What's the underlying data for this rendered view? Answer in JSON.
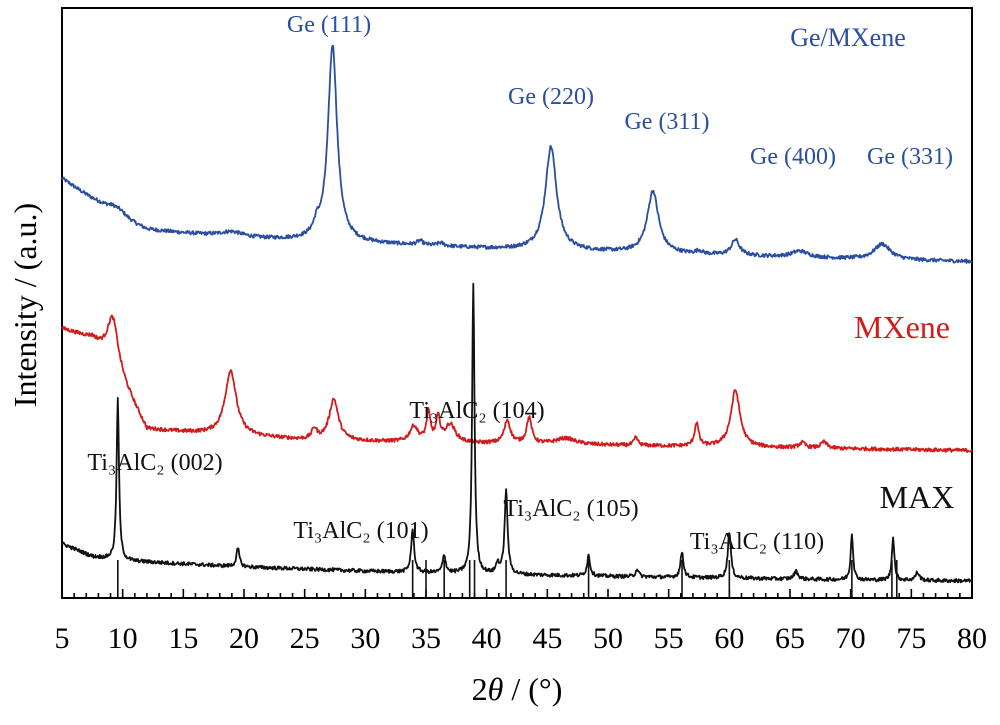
{
  "chart_data": {
    "type": "line",
    "title": "",
    "xlabel": "2θ / (°)",
    "xlabel_symbol": "θ",
    "xlabel_prefix": "2",
    "xlabel_suffix": " / (°)",
    "ylabel": "Intensity / (a.u.)",
    "xlim": [
      5,
      80
    ],
    "x_ticks": [
      5,
      10,
      15,
      20,
      25,
      30,
      35,
      40,
      45,
      50,
      55,
      60,
      65,
      70,
      75,
      80
    ],
    "y_ticks_visible": false,
    "grid": false,
    "colors": {
      "Ge/MXene": "#2a4ea0",
      "MXene": "#d21c1c",
      "MAX": "#111111"
    },
    "series": [
      {
        "name": "Ge/MXene",
        "color": "#2a4ea0",
        "baseline": [
          [
            5,
            8.1
          ],
          [
            8,
            7.6
          ],
          [
            9.5,
            7.3
          ],
          [
            12,
            7.1
          ],
          [
            20,
            6.95
          ],
          [
            30,
            6.85
          ],
          [
            40,
            6.75
          ],
          [
            55,
            6.65
          ],
          [
            70,
            6.55
          ],
          [
            80,
            6.5
          ]
        ],
        "peaks": [
          {
            "x": 9.5,
            "height": 0.25,
            "width": 1.0
          },
          {
            "x": 19.0,
            "height": 0.1,
            "width": 1.2
          },
          {
            "x": 26.0,
            "height": 0.2,
            "width": 0.3
          },
          {
            "x": 27.3,
            "height": 3.8,
            "width": 0.45
          },
          {
            "x": 34.5,
            "height": 0.08,
            "width": 0.3
          },
          {
            "x": 36.2,
            "height": 0.06,
            "width": 0.3
          },
          {
            "x": 45.3,
            "height": 2.0,
            "width": 0.55
          },
          {
            "x": 53.7,
            "height": 1.2,
            "width": 0.55
          },
          {
            "x": 57.5,
            "height": 0.06,
            "width": 0.3
          },
          {
            "x": 60.5,
            "height": 0.3,
            "width": 0.4
          },
          {
            "x": 65.8,
            "height": 0.12,
            "width": 0.8
          },
          {
            "x": 72.6,
            "height": 0.3,
            "width": 0.8
          }
        ],
        "peak_labels": [
          {
            "text": "Ge (111)",
            "x": 27.3
          },
          {
            "text": "Ge (220)",
            "x": 45.3
          },
          {
            "text": "Ge (311)",
            "x": 53.7
          },
          {
            "text": "Ge (400)",
            "x": 60.5
          },
          {
            "text": "Ge (331)",
            "x": 72.6
          }
        ]
      },
      {
        "name": "MXene",
        "color": "#d21c1c",
        "baseline": [
          [
            5,
            5.2
          ],
          [
            7.5,
            5.0
          ],
          [
            9,
            4.6
          ],
          [
            12,
            3.25
          ],
          [
            15,
            3.2
          ],
          [
            25,
            3.05
          ],
          [
            35,
            3.0
          ],
          [
            50,
            2.95
          ],
          [
            65,
            2.9
          ],
          [
            80,
            2.85
          ]
        ],
        "peaks": [
          {
            "x": 9.2,
            "height": 0.9,
            "width": 0.55
          },
          {
            "x": 18.9,
            "height": 1.25,
            "width": 0.55
          },
          {
            "x": 25.8,
            "height": 0.2,
            "width": 0.25
          },
          {
            "x": 27.4,
            "height": 0.8,
            "width": 0.45
          },
          {
            "x": 34.0,
            "height": 0.3,
            "width": 0.4
          },
          {
            "x": 35.2,
            "height": 0.55,
            "width": 0.2
          },
          {
            "x": 36.0,
            "height": 0.45,
            "width": 0.2
          },
          {
            "x": 37.0,
            "height": 0.35,
            "width": 0.5
          },
          {
            "x": 41.7,
            "height": 0.45,
            "width": 0.3
          },
          {
            "x": 43.5,
            "height": 0.5,
            "width": 0.25
          },
          {
            "x": 46.5,
            "height": 0.12,
            "width": 1.0
          },
          {
            "x": 52.3,
            "height": 0.15,
            "width": 0.2
          },
          {
            "x": 57.3,
            "height": 0.45,
            "width": 0.2
          },
          {
            "x": 60.5,
            "height": 1.1,
            "width": 0.45
          },
          {
            "x": 66.0,
            "height": 0.1,
            "width": 0.3
          },
          {
            "x": 67.8,
            "height": 0.12,
            "width": 0.3
          }
        ]
      },
      {
        "name": "MAX",
        "color": "#111111",
        "baseline": [
          [
            5,
            1.05
          ],
          [
            6,
            0.95
          ],
          [
            7.5,
            0.8
          ],
          [
            10,
            0.72
          ],
          [
            20,
            0.6
          ],
          [
            30,
            0.52
          ],
          [
            40,
            0.46
          ],
          [
            55,
            0.4
          ],
          [
            70,
            0.35
          ],
          [
            80,
            0.33
          ]
        ],
        "peaks": [
          {
            "x": 9.6,
            "height": 3.1,
            "width": 0.12
          },
          {
            "x": 19.5,
            "height": 0.35,
            "width": 0.15
          },
          {
            "x": 33.9,
            "height": 0.8,
            "width": 0.15
          },
          {
            "x": 36.5,
            "height": 0.35,
            "width": 0.15
          },
          {
            "x": 38.9,
            "height": 5.6,
            "width": 0.12
          },
          {
            "x": 40.9,
            "height": 0.2,
            "width": 0.15
          },
          {
            "x": 41.6,
            "height": 1.6,
            "width": 0.15
          },
          {
            "x": 48.4,
            "height": 0.4,
            "width": 0.15
          },
          {
            "x": 52.4,
            "height": 0.15,
            "width": 0.15
          },
          {
            "x": 56.1,
            "height": 0.5,
            "width": 0.15
          },
          {
            "x": 60.0,
            "height": 0.9,
            "width": 0.15
          },
          {
            "x": 65.5,
            "height": 0.15,
            "width": 0.2
          },
          {
            "x": 70.1,
            "height": 0.9,
            "width": 0.12
          },
          {
            "x": 73.5,
            "height": 0.85,
            "width": 0.12
          },
          {
            "x": 75.5,
            "height": 0.15,
            "width": 0.2
          }
        ],
        "peak_labels": [
          {
            "text": "Ti₃AlC₂ (002)",
            "x": 9.6
          },
          {
            "text": "Ti₃AlC₂ (101)",
            "x": 33.9
          },
          {
            "text": "Ti₃AlC₂ (104)",
            "x": 38.9
          },
          {
            "text": "Ti₃AlC₂ (105)",
            "x": 41.6
          },
          {
            "text": "Ti₃AlC₂ (110)",
            "x": 60.0
          }
        ],
        "reference_lines": [
          9.6,
          33.9,
          35.0,
          36.5,
          38.6,
          39.0,
          41.6,
          48.4,
          56.1,
          60.0,
          70.1,
          73.4,
          73.8
        ]
      }
    ]
  }
}
